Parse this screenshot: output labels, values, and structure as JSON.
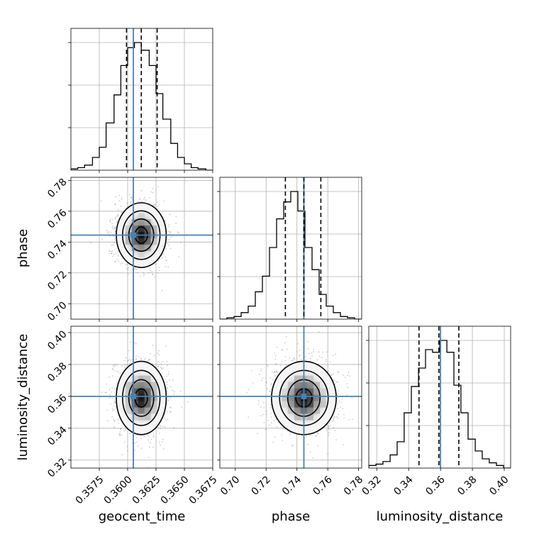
{
  "chart_data": {
    "type": "corner",
    "parameters": [
      "geocent_time",
      "phase",
      "luminosity_distance"
    ],
    "truths": {
      "geocent_time": 0.3605,
      "phase": 0.7445,
      "luminosity_distance": 0.36
    },
    "colors": {
      "truth": "#4682b4",
      "hist": "#000000",
      "grid": "#b0b0b0",
      "quantile": "#000000"
    },
    "grid": true,
    "axes": {
      "geocent_time": {
        "range": [
          0.355,
          0.3675
        ],
        "ticks": [
          0.3575,
          0.36,
          0.3625,
          0.365,
          0.3675
        ],
        "tick_labels": [
          "0.3575",
          "0.3600",
          "0.3625",
          "0.3650",
          "0.3675"
        ]
      },
      "phase": {
        "range": [
          0.69,
          0.782
        ],
        "ticks": [
          0.7,
          0.72,
          0.74,
          0.76,
          0.78
        ],
        "tick_labels": [
          "0.70",
          "0.72",
          "0.74",
          "0.76",
          "0.78"
        ]
      },
      "luminosity_distance": {
        "range": [
          0.315,
          0.404
        ],
        "ticks": [
          0.32,
          0.34,
          0.36,
          0.38,
          0.4
        ],
        "tick_labels": [
          "0.32",
          "0.34",
          "0.36",
          "0.38",
          "0.40"
        ]
      }
    },
    "marginals": [
      {
        "parameter": "geocent_time",
        "quantiles": [
          0.3599,
          0.3612,
          0.3626
        ],
        "bin_edges": [
          0.355,
          0.3556,
          0.3562,
          0.3569,
          0.3575,
          0.3581,
          0.3588,
          0.3594,
          0.36,
          0.3606,
          0.3612,
          0.3619,
          0.3625,
          0.3631,
          0.3638,
          0.3644,
          0.365,
          0.3656,
          0.3662,
          0.3669,
          0.3675
        ],
        "counts": [
          0.01,
          0.02,
          0.04,
          0.1,
          0.18,
          0.37,
          0.59,
          0.82,
          0.96,
          1.0,
          0.94,
          0.82,
          0.6,
          0.4,
          0.21,
          0.1,
          0.05,
          0.02,
          0.01,
          0.0
        ]
      },
      {
        "parameter": "phase",
        "quantiles": [
          0.7325,
          0.7445,
          0.7555
        ],
        "bin_edges": [
          0.69,
          0.6946,
          0.6992,
          0.7038,
          0.7084,
          0.713,
          0.7176,
          0.7222,
          0.7268,
          0.7314,
          0.736,
          0.7406,
          0.7452,
          0.7498,
          0.7544,
          0.759,
          0.7636,
          0.7682,
          0.7728,
          0.7774,
          0.782
        ],
        "counts": [
          0.0,
          0.01,
          0.02,
          0.05,
          0.1,
          0.21,
          0.33,
          0.55,
          0.77,
          0.9,
          0.98,
          0.83,
          0.55,
          0.38,
          0.19,
          0.1,
          0.05,
          0.02,
          0.01,
          0.0
        ]
      },
      {
        "parameter": "luminosity_distance",
        "quantiles": [
          0.3465,
          0.359,
          0.3715
        ],
        "bin_edges": [
          0.315,
          0.3195,
          0.3239,
          0.3284,
          0.3328,
          0.3372,
          0.3417,
          0.3462,
          0.3506,
          0.355,
          0.3595,
          0.364,
          0.3684,
          0.3728,
          0.3773,
          0.3818,
          0.3862,
          0.3906,
          0.3951,
          0.3996,
          0.404
        ],
        "counts": [
          0.02,
          0.03,
          0.05,
          0.1,
          0.2,
          0.42,
          0.62,
          0.76,
          0.9,
          0.88,
          0.97,
          0.88,
          0.63,
          0.42,
          0.22,
          0.13,
          0.07,
          0.04,
          0.02,
          0.0
        ]
      }
    ],
    "pairs": [
      {
        "x": "geocent_time",
        "y": "phase",
        "center": [
          0.3612,
          0.7445
        ],
        "sigma": [
          0.0011,
          0.0105
        ],
        "contour_sigma_levels": [
          0.5,
          1.0,
          1.5,
          2.0
        ]
      },
      {
        "x": "geocent_time",
        "y": "luminosity_distance",
        "center": [
          0.3612,
          0.359
        ],
        "sigma": [
          0.0011,
          0.0115
        ],
        "contour_sigma_levels": [
          0.5,
          1.0,
          1.5,
          2.0
        ]
      },
      {
        "x": "phase",
        "y": "luminosity_distance",
        "center": [
          0.7445,
          0.359
        ],
        "sigma": [
          0.0105,
          0.0115
        ],
        "contour_sigma_levels": [
          0.5,
          1.0,
          1.5,
          2.0
        ]
      }
    ]
  }
}
